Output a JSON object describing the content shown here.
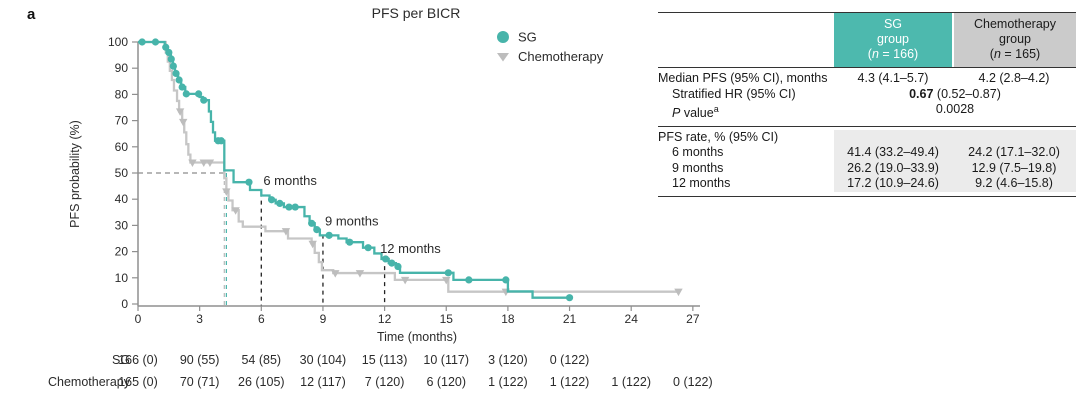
{
  "panel_label": "a",
  "legend": {
    "sg": "SG",
    "chemo": "Chemotherapy"
  },
  "chart_data": {
    "type": "line",
    "subtype": "kaplan-meier-step",
    "title": "PFS per BICR",
    "xlabel": "Time (months)",
    "ylabel": "PFS probability (%)",
    "xlim": [
      0,
      27
    ],
    "ylim": [
      0,
      100
    ],
    "xticks": [
      0,
      3,
      6,
      9,
      12,
      15,
      18,
      21,
      24,
      27
    ],
    "yticks": [
      0,
      10,
      20,
      30,
      40,
      50,
      60,
      70,
      80,
      90,
      100
    ],
    "grid": false,
    "legend_position": "top-right-inside",
    "colors": {
      "sg": "#47b4aa",
      "chemo": "#c6c6c6",
      "chemo_marker": "#bdbdbd",
      "axis": "#8f8f8f",
      "ref_dash": "#8c8c8c",
      "median_sg_dash": "#47b4aa",
      "median_chemo_dash": "#b8b8b8",
      "timepoint_dash": "#222222",
      "table_teal": "#4db9ae",
      "table_gray": "#cbcbcb",
      "table_shade": "#ebebeb"
    },
    "series": [
      {
        "name": "Chemotherapy",
        "marker": "triangle-down",
        "steps": [
          [
            0,
            100
          ],
          [
            1.25,
            100
          ],
          [
            1.35,
            96
          ],
          [
            1.45,
            92.5
          ],
          [
            1.55,
            89
          ],
          [
            1.65,
            85.5
          ],
          [
            1.75,
            81.5
          ],
          [
            1.9,
            77.5
          ],
          [
            2.0,
            73.5
          ],
          [
            2.15,
            69.5
          ],
          [
            2.25,
            65.5
          ],
          [
            2.35,
            61
          ],
          [
            2.45,
            57
          ],
          [
            2.55,
            54
          ],
          [
            4.2,
            48
          ],
          [
            4.3,
            43
          ],
          [
            4.4,
            39.5
          ],
          [
            4.6,
            35.8
          ],
          [
            4.9,
            31.5
          ],
          [
            5.1,
            29.5
          ],
          [
            6.2,
            27.8
          ],
          [
            7.3,
            25
          ],
          [
            8.45,
            23
          ],
          [
            8.6,
            19.5
          ],
          [
            8.8,
            16
          ],
          [
            8.95,
            12.9
          ],
          [
            9.5,
            11.8
          ],
          [
            12.5,
            9.2
          ],
          [
            15.1,
            4.7
          ],
          [
            26.3,
            4.7
          ]
        ],
        "censors": [
          [
            2.05,
            73.5
          ],
          [
            2.2,
            69.5
          ],
          [
            2.65,
            54
          ],
          [
            3.2,
            54
          ],
          [
            3.5,
            54
          ],
          [
            4.3,
            43
          ],
          [
            4.75,
            35.8
          ],
          [
            7.2,
            27.8
          ],
          [
            8.5,
            23
          ],
          [
            9.6,
            11.8
          ],
          [
            10.8,
            11.8
          ],
          [
            13.0,
            9.2
          ],
          [
            15.0,
            9.2
          ],
          [
            17.9,
            4.7
          ],
          [
            26.3,
            4.7
          ]
        ]
      },
      {
        "name": "SG",
        "marker": "circle",
        "steps": [
          [
            0,
            100
          ],
          [
            1.2,
            100
          ],
          [
            1.3,
            98
          ],
          [
            1.45,
            96
          ],
          [
            1.6,
            93.5
          ],
          [
            1.7,
            90.8
          ],
          [
            1.8,
            88
          ],
          [
            1.95,
            85.5
          ],
          [
            2.1,
            82.8
          ],
          [
            2.3,
            80.2
          ],
          [
            3.0,
            79
          ],
          [
            3.15,
            77.8
          ],
          [
            3.45,
            73.5
          ],
          [
            3.55,
            69.5
          ],
          [
            3.65,
            65.5
          ],
          [
            3.75,
            62.3
          ],
          [
            4.2,
            51
          ],
          [
            4.65,
            46.5
          ],
          [
            5.45,
            43.5
          ],
          [
            6.0,
            41.4
          ],
          [
            6.4,
            39.8
          ],
          [
            6.7,
            38.4
          ],
          [
            7.1,
            37
          ],
          [
            8.1,
            33.5
          ],
          [
            8.35,
            30.8
          ],
          [
            8.6,
            28.4
          ],
          [
            8.85,
            26.2
          ],
          [
            9.75,
            25
          ],
          [
            10.15,
            23.6
          ],
          [
            10.95,
            21.5
          ],
          [
            11.5,
            19.3
          ],
          [
            11.85,
            17.2
          ],
          [
            12.2,
            15.6
          ],
          [
            12.55,
            14.3
          ],
          [
            12.75,
            11.9
          ],
          [
            15.35,
            9.2
          ],
          [
            18.0,
            4.8
          ],
          [
            19.2,
            2.4
          ],
          [
            21.0,
            2.4
          ]
        ],
        "censors": [
          [
            0.2,
            100
          ],
          [
            0.85,
            100
          ],
          [
            1.35,
            98
          ],
          [
            1.5,
            96
          ],
          [
            1.62,
            93.5
          ],
          [
            1.72,
            90.8
          ],
          [
            1.85,
            88
          ],
          [
            2.0,
            85.5
          ],
          [
            2.15,
            82.8
          ],
          [
            2.35,
            80.2
          ],
          [
            2.95,
            80.2
          ],
          [
            3.2,
            77.8
          ],
          [
            3.9,
            62.3
          ],
          [
            4.05,
            62.3
          ],
          [
            5.4,
            46.5
          ],
          [
            6.5,
            39.8
          ],
          [
            6.9,
            38.4
          ],
          [
            7.35,
            37
          ],
          [
            7.65,
            37
          ],
          [
            8.45,
            30.8
          ],
          [
            8.7,
            28.4
          ],
          [
            9.3,
            26.2
          ],
          [
            10.3,
            23.6
          ],
          [
            11.2,
            21.5
          ],
          [
            12.05,
            17.2
          ],
          [
            12.35,
            15.6
          ],
          [
            12.65,
            14.3
          ],
          [
            15.1,
            11.9
          ],
          [
            16.1,
            9.2
          ],
          [
            17.9,
            9.2
          ],
          [
            21.0,
            2.4
          ]
        ]
      }
    ],
    "median_lines": {
      "horizontal_pct": 50,
      "sg_month": 4.3,
      "chemo_month": 4.2
    },
    "timepoint_lines": [
      {
        "label": "6 months",
        "month": 6,
        "top_pct": 42.5,
        "label_month": 6.1,
        "label_pct": 45.5
      },
      {
        "label": "9 months",
        "month": 9,
        "top_pct": 26.5,
        "label_month": 9.1,
        "label_pct": 30
      },
      {
        "label": "12 months",
        "month": 12,
        "top_pct": 17.5,
        "label_month": 11.78,
        "label_pct": 19.5
      }
    ],
    "at_risk": {
      "rows": [
        {
          "label": "SG",
          "values": [
            "166 (0)",
            "90 (55)",
            "54 (85)",
            "30 (104)",
            "15 (113)",
            "10 (117)",
            "3 (120)",
            "0 (122)"
          ]
        },
        {
          "label": "Chemotherapy",
          "values": [
            "165 (0)",
            "70 (71)",
            "26 (105)",
            "12 (117)",
            "7 (120)",
            "6 (120)",
            "1 (122)",
            "1 (122)",
            "1 (122)",
            "0 (122)"
          ]
        }
      ]
    }
  },
  "table": {
    "header": {
      "sg": {
        "line1": "SG",
        "line2": "group",
        "n_pre": "(",
        "n_italic": "n",
        "n_post": " = 166)"
      },
      "chemo": {
        "line1": "Chemotherapy",
        "line2": "group",
        "n_pre": "(",
        "n_italic": "n",
        "n_post": " = 165)"
      }
    },
    "rows": {
      "median_label": "Median PFS (95% CI), months",
      "median_sg": "4.3 (4.1–5.7)",
      "median_chemo": "4.2 (2.8–4.2)",
      "hr_label": "Stratified HR (95% CI)",
      "hr_bold": "0.67",
      "hr_rest": " (0.52–0.87)",
      "p_italic": "P",
      "p_rest": " value",
      "p_sup": "a",
      "p_value": "0.0028",
      "rate_label": "PFS rate, % (95% CI)",
      "rate_rows": [
        {
          "label": "6 months",
          "sg": "41.4 (33.2–49.4)",
          "chemo": "24.2 (17.1–32.0)"
        },
        {
          "label": "9 months",
          "sg": "26.2 (19.0–33.9)",
          "chemo": "12.9 (7.5–19.8)"
        },
        {
          "label": "12 months",
          "sg": "17.2 (10.9–24.6)",
          "chemo": "9.2 (4.6–15.8)"
        }
      ]
    }
  }
}
